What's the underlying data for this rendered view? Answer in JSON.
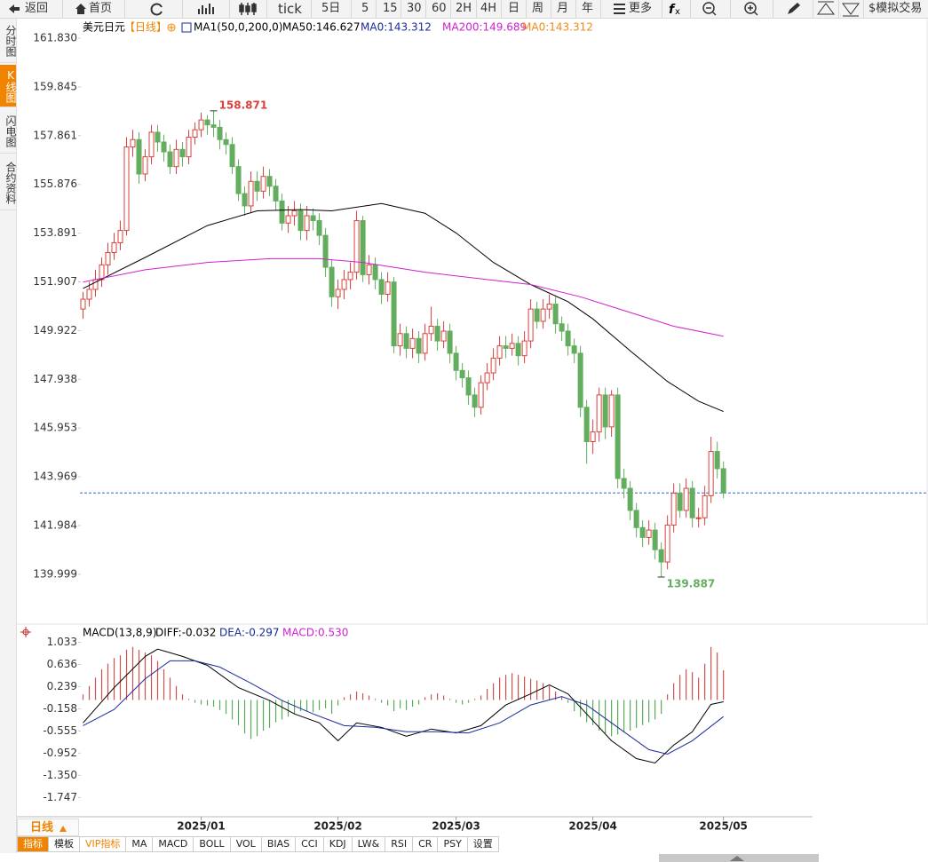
{
  "toolbar": [
    "返回",
    "首页",
    "tick",
    "5日",
    "5",
    "15",
    "30",
    "60",
    "2H",
    "4H",
    "日",
    "周",
    "月",
    "年",
    "更多",
    "$模拟交易"
  ],
  "sidebar": [
    "分时图",
    "K线图",
    "闪电图",
    "合约资料"
  ],
  "timeframe": "日线",
  "indicator_tabs": [
    "指标",
    "模板",
    "VIP指标",
    "MA",
    "MACD",
    "BOLL",
    "VOL",
    "BIAS",
    "CCI",
    "KDJ",
    "LW&",
    "RSI",
    "CR",
    "PSY",
    "设置"
  ],
  "chart_data": [
    {
      "type": "candlestick",
      "title": "美元日元",
      "subtitle": "【日线】",
      "legend_items": [
        {
          "text": "MA1(50,0,200,0)",
          "color": "#000000"
        },
        {
          "text": "MA50:146.627",
          "color": "#000000"
        },
        {
          "text": "MA0:143.312",
          "color": "#1a2a9a"
        },
        {
          "text": "MA200:149.689",
          "color": "#d020d0"
        },
        {
          "text": "MA0:143.312",
          "color": "#f08a1a"
        }
      ],
      "up_color": "#d9413c",
      "down_color": "#62ad5e",
      "open": [
        150.8,
        151.2,
        151.6,
        152.0,
        152.6,
        153.1,
        153.5,
        154.0,
        157.4,
        157.7,
        156.3,
        157.0,
        158.0,
        157.6,
        157.2,
        156.6,
        157.3,
        157.0,
        157.8,
        158.1,
        158.5,
        158.3,
        158.2,
        157.7,
        157.5,
        156.6,
        155.5,
        155.0,
        156.0,
        155.6,
        156.2,
        155.8,
        155.2,
        154.3,
        154.6,
        154.8,
        154.0,
        154.6,
        154.4,
        153.8,
        152.5,
        151.3,
        151.6,
        152.0,
        152.3,
        154.4,
        152.2,
        152.6,
        152.0,
        151.4,
        151.9,
        149.3,
        149.8,
        149.2,
        149.6,
        149.0,
        149.8,
        150.1,
        149.5,
        149.9,
        149.0,
        148.3,
        148.0,
        147.3,
        146.8,
        147.8,
        148.2,
        148.8,
        149.3,
        149.2,
        149.4,
        148.9,
        149.5,
        150.8,
        150.3,
        150.8,
        151.0,
        150.2,
        149.9,
        149.3,
        149.0,
        146.8,
        145.4,
        145.8,
        147.3,
        146.0,
        147.3,
        143.9,
        143.5,
        142.6,
        141.9,
        141.5,
        141.8,
        141.0,
        140.5,
        142.0,
        143.3,
        142.6,
        143.5,
        142.3,
        142.3,
        143.2,
        145.0,
        144.3
      ],
      "high": [
        151.5,
        151.9,
        152.4,
        152.9,
        153.5,
        153.9,
        154.4,
        157.8,
        158.1,
        158.0,
        157.3,
        158.3,
        158.3,
        157.9,
        157.5,
        157.7,
        157.6,
        158.1,
        158.4,
        158.8,
        158.7,
        158.871,
        158.5,
        158.0,
        157.8,
        156.9,
        155.8,
        156.4,
        156.4,
        156.6,
        156.5,
        156.1,
        155.5,
        155.0,
        155.2,
        155.1,
        155.0,
        154.9,
        154.7,
        154.1,
        152.8,
        152.0,
        152.4,
        152.7,
        154.8,
        154.6,
        153.0,
        152.9,
        152.3,
        152.3,
        152.1,
        150.2,
        150.1,
        150.0,
        149.9,
        150.2,
        150.9,
        150.4,
        150.3,
        150.2,
        149.3,
        148.6,
        148.3,
        147.6,
        148.1,
        148.6,
        149.2,
        149.7,
        149.7,
        149.8,
        149.7,
        149.9,
        151.2,
        151.1,
        151.2,
        151.4,
        151.3,
        150.5,
        150.2,
        149.6,
        149.3,
        147.1,
        146.3,
        147.6,
        147.6,
        147.5,
        147.6,
        144.3,
        143.8,
        142.9,
        142.2,
        142.2,
        142.1,
        141.3,
        142.4,
        143.7,
        143.7,
        143.9,
        143.8,
        142.7,
        143.6,
        145.6,
        145.4,
        144.6
      ],
      "low": [
        150.4,
        150.9,
        151.3,
        151.7,
        152.2,
        152.8,
        153.2,
        153.8,
        157.0,
        155.9,
        156.0,
        156.7,
        157.2,
        156.8,
        156.3,
        156.3,
        156.6,
        156.7,
        157.5,
        157.8,
        157.9,
        157.8,
        157.3,
        157.1,
        156.3,
        155.2,
        154.6,
        154.7,
        155.2,
        155.3,
        155.4,
        154.8,
        154.0,
        153.9,
        154.2,
        153.6,
        153.6,
        154.0,
        153.4,
        152.1,
        150.9,
        150.8,
        151.2,
        151.6,
        152.0,
        151.9,
        151.8,
        151.6,
        151.0,
        151.1,
        149.0,
        148.9,
        148.8,
        148.8,
        148.6,
        148.7,
        149.5,
        149.1,
        149.2,
        148.6,
        147.9,
        147.6,
        146.9,
        146.4,
        146.5,
        147.5,
        147.9,
        148.5,
        148.8,
        148.9,
        148.5,
        148.6,
        149.2,
        150.0,
        150.0,
        150.4,
        149.8,
        149.5,
        148.9,
        148.6,
        146.4,
        144.5,
        144.9,
        145.4,
        145.5,
        145.6,
        143.5,
        143.1,
        142.2,
        141.5,
        141.1,
        141.2,
        140.6,
        139.887,
        140.2,
        141.7,
        142.3,
        142.3,
        141.9,
        141.9,
        142.0,
        142.9,
        143.9,
        143.1
      ],
      "close": [
        151.2,
        151.6,
        152.0,
        152.6,
        153.1,
        153.5,
        154.0,
        157.4,
        157.7,
        156.3,
        157.0,
        158.0,
        157.6,
        157.2,
        156.6,
        157.3,
        157.0,
        157.8,
        158.1,
        158.5,
        158.3,
        158.2,
        157.7,
        157.5,
        156.6,
        155.5,
        155.0,
        156.0,
        155.6,
        156.2,
        155.8,
        155.2,
        154.3,
        154.6,
        154.8,
        154.0,
        154.6,
        154.4,
        153.8,
        152.5,
        151.3,
        151.6,
        152.0,
        152.3,
        154.4,
        152.2,
        152.6,
        152.0,
        151.4,
        151.9,
        149.3,
        149.8,
        149.2,
        149.6,
        149.0,
        149.8,
        150.1,
        149.5,
        149.9,
        149.0,
        148.3,
        148.0,
        147.3,
        146.8,
        147.8,
        148.2,
        148.8,
        149.3,
        149.2,
        149.4,
        148.9,
        149.5,
        150.8,
        150.3,
        150.8,
        151.0,
        150.2,
        149.9,
        149.3,
        149.0,
        146.8,
        145.4,
        145.8,
        147.3,
        146.0,
        147.3,
        143.9,
        143.5,
        142.6,
        141.9,
        141.5,
        141.8,
        141.0,
        140.5,
        142.0,
        143.3,
        142.6,
        143.5,
        142.3,
        142.3,
        143.2,
        145.0,
        144.3,
        143.31
      ],
      "lines": [
        {
          "color": "#000000",
          "x": [
            0,
            10,
            20,
            28,
            35,
            40,
            48,
            55,
            60,
            66,
            72,
            78,
            82,
            88,
            94,
            99,
            103
          ],
          "values": [
            151.64,
            152.9,
            154.2,
            154.8,
            154.85,
            154.8,
            155.1,
            154.7,
            153.9,
            152.7,
            151.8,
            151.1,
            150.4,
            149.1,
            147.85,
            147.05,
            146.627
          ]
        },
        {
          "color": "#d020d0",
          "x": [
            0,
            10,
            20,
            30,
            38,
            45,
            55,
            65,
            72,
            80,
            85,
            90,
            95,
            103
          ],
          "values": [
            151.9,
            152.4,
            152.7,
            152.85,
            152.85,
            152.7,
            152.3,
            152.0,
            151.8,
            151.3,
            150.9,
            150.5,
            150.1,
            149.689
          ]
        }
      ],
      "reference_line": {
        "value": 143.312,
        "color": "#2a6ad0"
      },
      "ylim": [
        139.2,
        162.3
      ],
      "yticks": [
        {
          "value": 161.83,
          "label": "161.830"
        },
        159.845,
        157.861,
        155.876,
        153.891,
        151.907,
        149.922,
        147.938,
        145.953,
        143.969,
        141.984,
        139.999
      ],
      "xlim": [
        -0.5,
        135.9
      ],
      "xticks": [
        {
          "value": 19,
          "label": "2025/01"
        },
        {
          "value": 41,
          "label": "2025/02"
        },
        {
          "value": 60,
          "label": "2025/03"
        },
        {
          "value": 82,
          "label": "2025/04"
        },
        {
          "value": 103,
          "label": "2025/05"
        }
      ]
    },
    {
      "type": "macd",
      "title": "MACD(13,8,9)",
      "legend_items": [
        {
          "text": "DIFF:-0.032",
          "color": "#000000"
        },
        {
          "text": "DEA:-0.297",
          "color": "#1a2a9a"
        },
        {
          "text": "MACD:0.530",
          "color": "#d020d0"
        }
      ],
      "up_color": "#d05050",
      "down_color": "#5aaa5a",
      "histogram": [
        0.1,
        0.25,
        0.4,
        0.55,
        0.65,
        0.75,
        0.8,
        0.9,
        0.95,
        0.9,
        0.85,
        0.8,
        0.7,
        0.55,
        0.4,
        0.25,
        0.1,
        0.02,
        -0.05,
        -0.08,
        -0.1,
        -0.12,
        -0.18,
        -0.25,
        -0.35,
        -0.45,
        -0.6,
        -0.7,
        -0.65,
        -0.55,
        -0.5,
        -0.4,
        -0.35,
        -0.3,
        -0.25,
        -0.2,
        -0.2,
        -0.22,
        -0.18,
        -0.15,
        -0.25,
        -0.1,
        0.05,
        0.1,
        0.15,
        0.12,
        0.08,
        0.02,
        -0.05,
        -0.1,
        -0.2,
        -0.15,
        -0.18,
        -0.12,
        -0.08,
        0.05,
        0.1,
        0.12,
        0.08,
        0.02,
        -0.05,
        -0.08,
        -0.05,
        0.02,
        0.08,
        0.2,
        0.3,
        0.4,
        0.45,
        0.48,
        0.45,
        0.42,
        0.38,
        0.35,
        0.3,
        0.25,
        0.15,
        0.05,
        -0.05,
        -0.2,
        -0.3,
        -0.4,
        -0.45,
        -0.55,
        -0.6,
        -0.65,
        -0.62,
        -0.58,
        -0.55,
        -0.5,
        -0.45,
        -0.4,
        -0.35,
        -0.25,
        0.1,
        0.3,
        0.45,
        0.55,
        0.5,
        0.4,
        0.65,
        0.95,
        0.85,
        0.53
      ],
      "lines": [
        {
          "color": "#000000",
          "x": [
            0,
            5,
            10,
            12,
            16,
            20,
            25,
            30,
            34,
            38,
            41,
            44,
            48,
            52,
            56,
            60,
            64,
            68,
            72,
            75,
            78,
            81,
            85,
            89,
            92,
            95,
            98,
            101,
            103
          ],
          "values": [
            -0.41,
            0.22,
            0.78,
            0.91,
            0.78,
            0.62,
            0.22,
            -0.01,
            -0.25,
            -0.41,
            -0.73,
            -0.41,
            -0.49,
            -0.65,
            -0.52,
            -0.59,
            -0.46,
            -0.09,
            0.11,
            0.27,
            0.11,
            -0.25,
            -0.73,
            -1.05,
            -1.13,
            -0.81,
            -0.57,
            -0.08,
            -0.032
          ]
        },
        {
          "color": "#1a2a9a",
          "x": [
            0,
            5,
            10,
            14,
            18,
            22,
            27,
            32,
            37,
            42,
            47,
            52,
            57,
            62,
            67,
            72,
            77,
            81,
            86,
            91,
            94,
            98,
            103
          ],
          "values": [
            -0.46,
            -0.17,
            0.38,
            0.7,
            0.7,
            0.59,
            0.3,
            -0.01,
            -0.25,
            -0.46,
            -0.49,
            -0.57,
            -0.57,
            -0.59,
            -0.41,
            -0.09,
            0.06,
            -0.09,
            -0.49,
            -0.89,
            -0.97,
            -0.73,
            -0.297
          ]
        }
      ],
      "ylim": [
        -1.98,
        1.2
      ],
      "yticks": [
        1.033,
        0.636,
        0.239,
        -0.158,
        -0.555,
        -0.952,
        {
          "value": -1.35,
          "label": "-1.350"
        },
        -1.747
      ]
    }
  ]
}
